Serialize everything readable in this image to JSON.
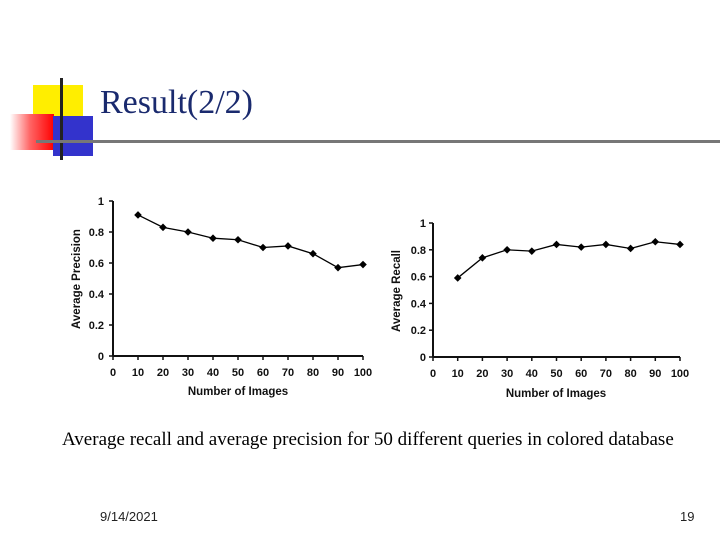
{
  "slide": {
    "title": "Result(2/2)",
    "caption": "Average recall and average precision for 50 different queries in colored database",
    "date": "9/14/2021",
    "page_number": "19",
    "colors": {
      "title": "#1a2a6e",
      "line": "#000000",
      "deco_yellow": "#ffee00",
      "deco_blue": "#3333cc",
      "deco_red": "#ff0000"
    }
  },
  "chart_data": [
    {
      "type": "line",
      "title": "",
      "xlabel": "Number of Images",
      "ylabel": "Average Precision",
      "x": [
        10,
        20,
        30,
        40,
        50,
        60,
        70,
        80,
        90,
        100
      ],
      "x_ticks": [
        "0",
        "10",
        "20",
        "30",
        "40",
        "50",
        "60",
        "70",
        "80",
        "90",
        "100"
      ],
      "y_ticks": [
        "0",
        "0.2",
        "0.4",
        "0.6",
        "0.8",
        "1"
      ],
      "xlim": [
        0,
        100
      ],
      "ylim": [
        0,
        1
      ],
      "grid": false,
      "series": [
        {
          "values": [
            0.91,
            0.83,
            0.8,
            0.76,
            0.75,
            0.7,
            0.71,
            0.66,
            0.57,
            0.59
          ]
        }
      ]
    },
    {
      "type": "line",
      "title": "",
      "xlabel": "Number of Images",
      "ylabel": "Average Recall",
      "x": [
        10,
        20,
        30,
        40,
        50,
        60,
        70,
        80,
        90,
        100
      ],
      "x_ticks": [
        "0",
        "10",
        "20",
        "30",
        "40",
        "50",
        "60",
        "70",
        "80",
        "90",
        "100"
      ],
      "y_ticks": [
        "0",
        "0.2",
        "0.4",
        "0.6",
        "0.8",
        "1"
      ],
      "xlim": [
        0,
        100
      ],
      "ylim": [
        0,
        1
      ],
      "grid": false,
      "series": [
        {
          "values": [
            0.59,
            0.74,
            0.8,
            0.79,
            0.84,
            0.82,
            0.84,
            0.81,
            0.86,
            0.84
          ]
        }
      ]
    }
  ]
}
